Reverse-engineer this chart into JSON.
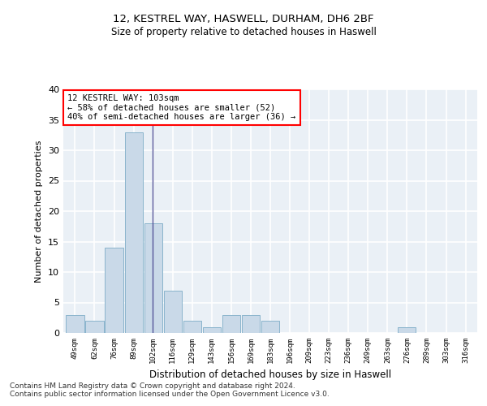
{
  "title1": "12, KESTREL WAY, HASWELL, DURHAM, DH6 2BF",
  "title2": "Size of property relative to detached houses in Haswell",
  "xlabel": "Distribution of detached houses by size in Haswell",
  "ylabel": "Number of detached properties",
  "categories": [
    "49sqm",
    "62sqm",
    "76sqm",
    "89sqm",
    "102sqm",
    "116sqm",
    "129sqm",
    "143sqm",
    "156sqm",
    "169sqm",
    "183sqm",
    "196sqm",
    "209sqm",
    "223sqm",
    "236sqm",
    "249sqm",
    "263sqm",
    "276sqm",
    "289sqm",
    "303sqm",
    "316sqm"
  ],
  "values": [
    3,
    2,
    14,
    33,
    18,
    7,
    2,
    1,
    3,
    3,
    2,
    0,
    0,
    0,
    0,
    0,
    0,
    1,
    0,
    0,
    0
  ],
  "bar_color": "#c9d9e8",
  "bar_edge_color": "#8ab4cc",
  "highlight_index": 4,
  "highlight_line_color": "#555599",
  "annotation_text": "12 KESTREL WAY: 103sqm\n← 58% of detached houses are smaller (52)\n40% of semi-detached houses are larger (36) →",
  "annotation_box_color": "white",
  "annotation_box_edge_color": "red",
  "ylim": [
    0,
    40
  ],
  "yticks": [
    0,
    5,
    10,
    15,
    20,
    25,
    30,
    35,
    40
  ],
  "bg_color": "#eaf0f6",
  "grid_color": "white",
  "footer1": "Contains HM Land Registry data © Crown copyright and database right 2024.",
  "footer2": "Contains public sector information licensed under the Open Government Licence v3.0."
}
